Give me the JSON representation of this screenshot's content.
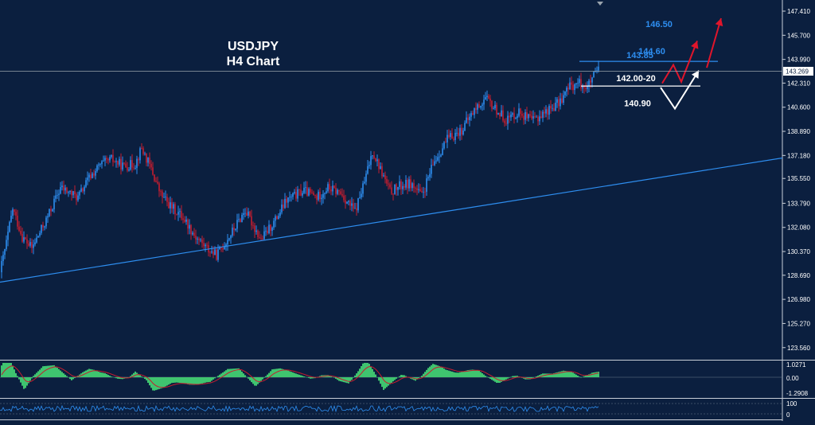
{
  "chart_data": [
    {
      "type": "candlestick",
      "title": "USDJPY",
      "subtitle": "H4 Chart",
      "ylim": [
        122.7,
        148.2
      ],
      "y_ticks": [
        "147.410",
        "145.700",
        "143.990",
        "142.310",
        "140.600",
        "138.890",
        "137.180",
        "135.550",
        "133.790",
        "132.080",
        "130.370",
        "128.690",
        "126.980",
        "125.270",
        "123.560"
      ],
      "current_price": "143.269",
      "price_path": [
        {
          "t": 0,
          "v": 128.9
        },
        {
          "t": 8,
          "v": 131.0
        },
        {
          "t": 16,
          "v": 133.4
        },
        {
          "t": 28,
          "v": 131.4
        },
        {
          "t": 40,
          "v": 130.6
        },
        {
          "t": 58,
          "v": 132.6
        },
        {
          "t": 76,
          "v": 134.9
        },
        {
          "t": 98,
          "v": 134.2
        },
        {
          "t": 112,
          "v": 135.6
        },
        {
          "t": 126,
          "v": 136.5
        },
        {
          "t": 140,
          "v": 136.9
        },
        {
          "t": 156,
          "v": 136.4
        },
        {
          "t": 170,
          "v": 136.6
        },
        {
          "t": 178,
          "v": 137.7
        },
        {
          "t": 190,
          "v": 136.2
        },
        {
          "t": 202,
          "v": 134.4
        },
        {
          "t": 214,
          "v": 133.6
        },
        {
          "t": 230,
          "v": 132.8
        },
        {
          "t": 246,
          "v": 131.4
        },
        {
          "t": 262,
          "v": 130.5
        },
        {
          "t": 272,
          "v": 130.1
        },
        {
          "t": 290,
          "v": 131.6
        },
        {
          "t": 308,
          "v": 133.3
        },
        {
          "t": 328,
          "v": 131.2
        },
        {
          "t": 346,
          "v": 132.6
        },
        {
          "t": 360,
          "v": 134.0
        },
        {
          "t": 382,
          "v": 134.7
        },
        {
          "t": 398,
          "v": 134.2
        },
        {
          "t": 412,
          "v": 134.9
        },
        {
          "t": 428,
          "v": 134.5
        },
        {
          "t": 446,
          "v": 133.2
        },
        {
          "t": 458,
          "v": 135.3
        },
        {
          "t": 468,
          "v": 137.5
        },
        {
          "t": 478,
          "v": 136.2
        },
        {
          "t": 490,
          "v": 134.6
        },
        {
          "t": 502,
          "v": 135.0
        },
        {
          "t": 516,
          "v": 135.2
        },
        {
          "t": 530,
          "v": 134.3
        },
        {
          "t": 546,
          "v": 136.8
        },
        {
          "t": 562,
          "v": 138.3
        },
        {
          "t": 580,
          "v": 139.0
        },
        {
          "t": 596,
          "v": 140.4
        },
        {
          "t": 610,
          "v": 141.2
        },
        {
          "t": 622,
          "v": 140.5
        },
        {
          "t": 636,
          "v": 139.7
        },
        {
          "t": 652,
          "v": 140.3
        },
        {
          "t": 668,
          "v": 139.6
        },
        {
          "t": 686,
          "v": 140.3
        },
        {
          "t": 702,
          "v": 140.9
        },
        {
          "t": 716,
          "v": 142.1
        },
        {
          "t": 728,
          "v": 142.3
        },
        {
          "t": 738,
          "v": 142.0
        },
        {
          "t": 744,
          "v": 142.6
        },
        {
          "t": 752,
          "v": 143.27
        }
      ],
      "trendline": {
        "start": {
          "t": 0,
          "v": 128.2
        },
        "end": {
          "t": 983,
          "v": 137.0
        }
      },
      "levels": [
        {
          "label": "146.50",
          "value": 146.5,
          "style": "label",
          "color": "#2e8ef0"
        },
        {
          "label": "144.60",
          "value": 144.6,
          "style": "label",
          "color": "#2e8ef0"
        },
        {
          "label": "143.85",
          "value": 143.85,
          "style": "line",
          "color": "#2e8ef0"
        },
        {
          "label": "142.00-20",
          "value": 142.1,
          "style": "line",
          "color": "#ffffff"
        },
        {
          "label": "140.90",
          "value": 140.9,
          "style": "label",
          "color": "#ffffff"
        }
      ],
      "scenarios": [
        {
          "color": "#e0152b",
          "path": [
            {
              "t": 832,
              "v": 142.3
            },
            {
              "t": 846,
              "v": 143.6
            },
            {
              "t": 856,
              "v": 142.4
            },
            {
              "t": 876,
              "v": 145.3
            }
          ]
        },
        {
          "color": "#e0152b",
          "path": [
            {
              "t": 888,
              "v": 143.4
            },
            {
              "t": 906,
              "v": 146.9
            }
          ]
        },
        {
          "color": "#ffffff",
          "path": [
            {
              "t": 830,
              "v": 142.0
            },
            {
              "t": 848,
              "v": 140.5
            },
            {
              "t": 878,
              "v": 143.2
            }
          ]
        }
      ],
      "colors": {
        "up": "#2e8ef0",
        "down": "#c51d2f",
        "trend": "#2e8ef0"
      }
    },
    {
      "type": "histogram",
      "y_ticks": [
        "1.0271",
        "0.00",
        "-1.2908"
      ],
      "colors": {
        "fill": "#3fc46f",
        "signal": "#c51d2f"
      }
    },
    {
      "type": "line",
      "y_ticks": [
        "100",
        "0"
      ],
      "colors": {
        "line": "#2e8ef0"
      }
    }
  ]
}
